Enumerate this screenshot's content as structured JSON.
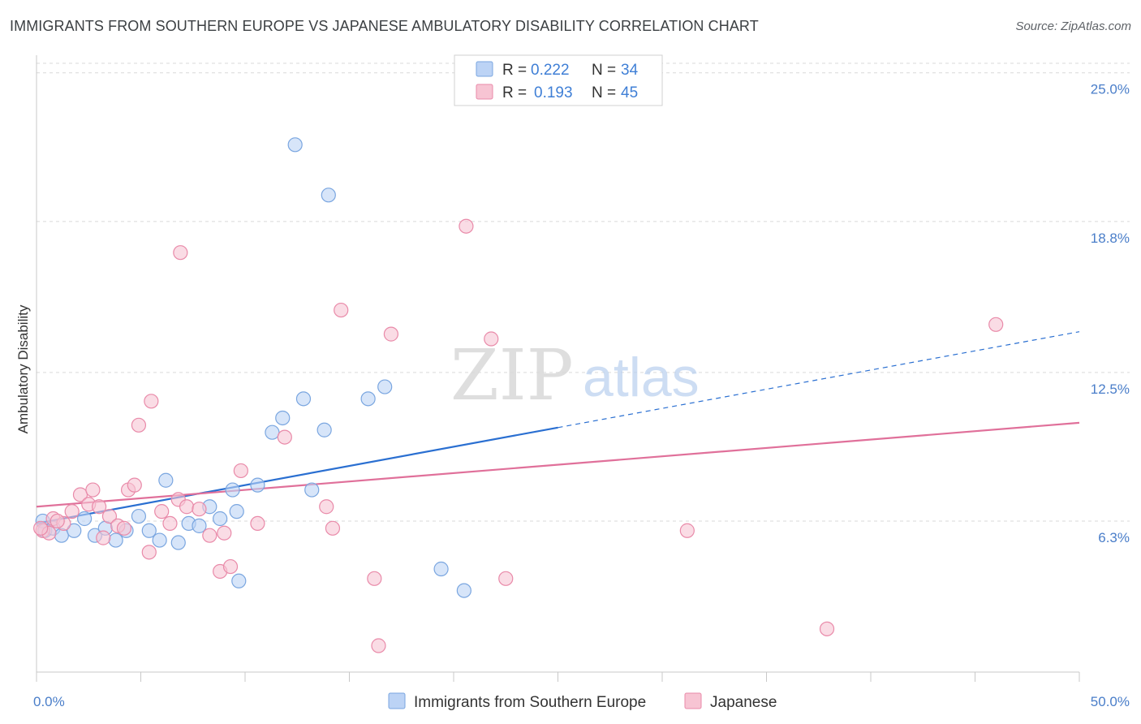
{
  "title": "IMMIGRANTS FROM SOUTHERN EUROPE VS JAPANESE AMBULATORY DISABILITY CORRELATION CHART",
  "source": "Source: ZipAtlas.com",
  "watermark": {
    "zip": "ZIP",
    "atlas": "atlas"
  },
  "colors": {
    "blue_fill": "#bcd3f5",
    "blue_stroke": "#7aa6e0",
    "blue_line": "#2a6fd1",
    "pink_fill": "#f7c4d3",
    "pink_stroke": "#e98aa9",
    "pink_line": "#e0709a",
    "tick": "#4a7ec9",
    "grid": "#d9d9d9"
  },
  "legend": {
    "rows": [
      {
        "r_label": "R =",
        "r_value": "0.222",
        "n_label": "N =",
        "n_value": "34"
      },
      {
        "r_label": "R =",
        "r_value": "0.193",
        "n_label": "N =",
        "n_value": "45"
      }
    ]
  },
  "chart_data": {
    "type": "scatter",
    "title": "IMMIGRANTS FROM SOUTHERN EUROPE VS JAPANESE AMBULATORY DISABILITY CORRELATION CHART",
    "ylabel": "Ambulatory Disability",
    "xlabel": "",
    "xlim": [
      0,
      50
    ],
    "ylim": [
      0,
      25.6
    ],
    "x_tick_labels": [
      {
        "value": 0,
        "label": "0.0%"
      },
      {
        "value": 50,
        "label": "50.0%"
      }
    ],
    "y_tick_labels": [
      {
        "value": 6.3,
        "label": "6.3%"
      },
      {
        "value": 12.5,
        "label": "12.5%"
      },
      {
        "value": 18.8,
        "label": "18.8%"
      },
      {
        "value": 25.0,
        "label": "25.0%"
      }
    ],
    "grid": true,
    "legend_position": "top-center",
    "series": [
      {
        "name": "Immigrants from Southern Europe",
        "color": "#bcd3f5",
        "points": [
          [
            0.3,
            6.3
          ],
          [
            0.4,
            5.9
          ],
          [
            0.8,
            6.0
          ],
          [
            1.2,
            5.7
          ],
          [
            1.8,
            5.9
          ],
          [
            2.3,
            6.4
          ],
          [
            2.8,
            5.7
          ],
          [
            3.3,
            6.0
          ],
          [
            3.8,
            5.5
          ],
          [
            4.3,
            5.9
          ],
          [
            4.9,
            6.5
          ],
          [
            5.4,
            5.9
          ],
          [
            5.9,
            5.5
          ],
          [
            6.2,
            8.0
          ],
          [
            6.8,
            5.4
          ],
          [
            7.3,
            6.2
          ],
          [
            7.8,
            6.1
          ],
          [
            8.3,
            6.9
          ],
          [
            8.8,
            6.4
          ],
          [
            9.4,
            7.6
          ],
          [
            9.7,
            3.8
          ],
          [
            9.6,
            6.7
          ],
          [
            10.6,
            7.8
          ],
          [
            11.3,
            10.0
          ],
          [
            11.8,
            10.6
          ],
          [
            12.4,
            22.0
          ],
          [
            12.8,
            11.4
          ],
          [
            13.2,
            7.6
          ],
          [
            13.8,
            10.1
          ],
          [
            14.0,
            19.9
          ],
          [
            15.9,
            11.4
          ],
          [
            16.7,
            11.9
          ],
          [
            19.4,
            4.3
          ],
          [
            20.5,
            3.4
          ]
        ]
      },
      {
        "name": "Japanese",
        "color": "#f7c4d3",
        "points": [
          [
            0.3,
            5.9
          ],
          [
            0.6,
            5.8
          ],
          [
            0.8,
            6.4
          ],
          [
            1.3,
            6.2
          ],
          [
            1.7,
            6.7
          ],
          [
            2.1,
            7.4
          ],
          [
            2.5,
            7.0
          ],
          [
            2.7,
            7.6
          ],
          [
            3.0,
            6.9
          ],
          [
            3.2,
            5.6
          ],
          [
            3.5,
            6.5
          ],
          [
            3.9,
            6.1
          ],
          [
            4.2,
            6.0
          ],
          [
            4.4,
            7.6
          ],
          [
            4.7,
            7.8
          ],
          [
            4.9,
            10.3
          ],
          [
            5.4,
            5.0
          ],
          [
            5.5,
            11.3
          ],
          [
            6.0,
            6.7
          ],
          [
            6.4,
            6.2
          ],
          [
            6.8,
            7.2
          ],
          [
            6.9,
            17.5
          ],
          [
            7.2,
            6.9
          ],
          [
            7.8,
            6.8
          ],
          [
            8.3,
            5.7
          ],
          [
            8.8,
            4.2
          ],
          [
            9.0,
            5.8
          ],
          [
            9.3,
            4.4
          ],
          [
            9.8,
            8.4
          ],
          [
            10.6,
            6.2
          ],
          [
            11.9,
            9.8
          ],
          [
            13.9,
            6.9
          ],
          [
            14.2,
            6.0
          ],
          [
            14.6,
            15.1
          ],
          [
            16.2,
            3.9
          ],
          [
            16.4,
            1.1
          ],
          [
            17.0,
            14.1
          ],
          [
            20.6,
            18.6
          ],
          [
            21.8,
            13.9
          ],
          [
            22.5,
            3.9
          ],
          [
            31.2,
            5.9
          ],
          [
            37.9,
            1.8
          ],
          [
            46.0,
            14.5
          ],
          [
            0.2,
            6.0
          ],
          [
            1.0,
            6.3
          ]
        ]
      }
    ],
    "trendlines": [
      {
        "series": "Immigrants from Southern Europe",
        "x0": 0,
        "y0": 6.2,
        "x1": 25,
        "y1": 10.2,
        "dashed_extension_to": [
          50,
          14.2
        ]
      },
      {
        "series": "Japanese",
        "x0": 0,
        "y0": 6.9,
        "x1": 50,
        "y1": 10.4
      }
    ]
  }
}
